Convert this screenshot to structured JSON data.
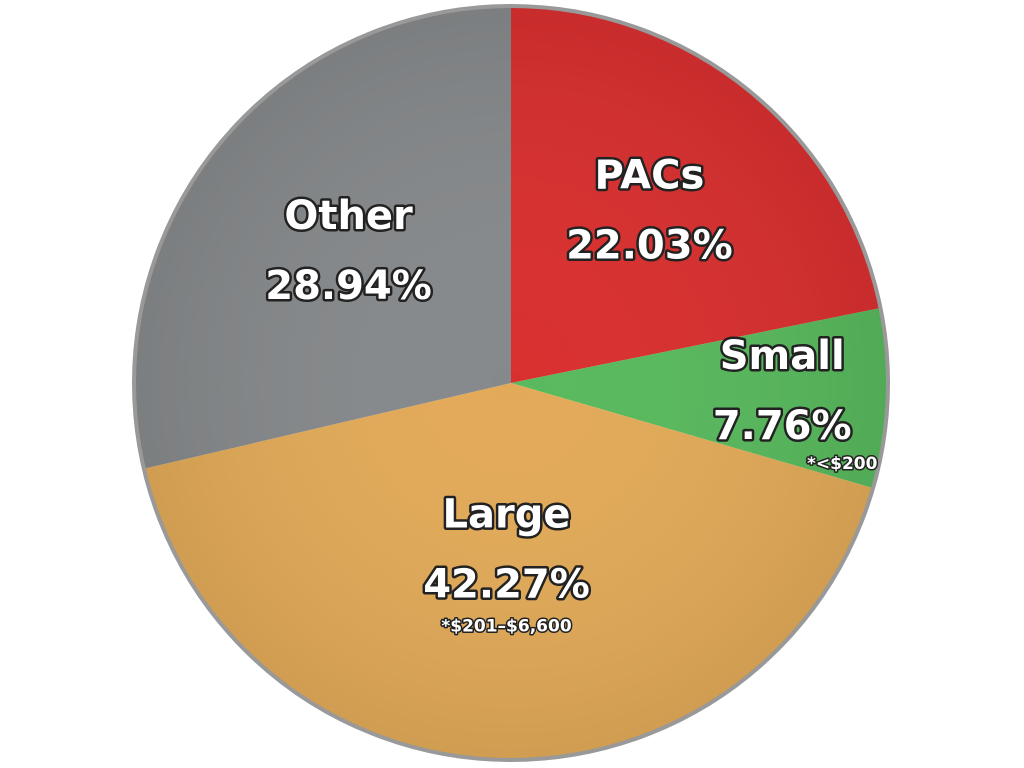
{
  "chart_data": {
    "type": "pie",
    "categories": [
      "PACs",
      "Small",
      "Large",
      "Other"
    ],
    "values": [
      22.03,
      7.76,
      42.27,
      28.94
    ],
    "value_labels": [
      "22.03%",
      "7.76%",
      "42.27%",
      "28.94%"
    ],
    "notes": [
      null,
      "*<$200",
      "*$201–$6,600",
      null
    ],
    "colors": [
      "#d92f2f",
      "#58b95d",
      "#e2aa58",
      "#86898b"
    ]
  }
}
